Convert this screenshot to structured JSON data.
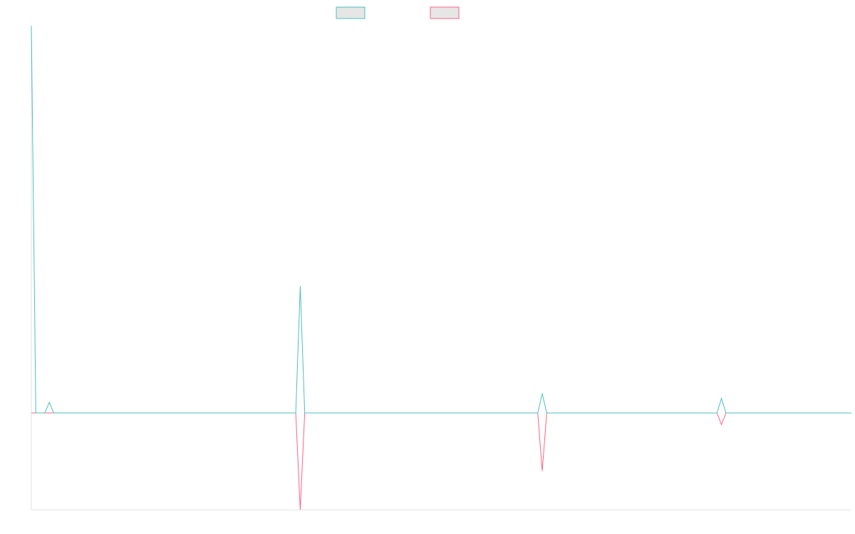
{
  "chart_data": {
    "type": "line",
    "title": "",
    "xlabel": "",
    "ylabel": "",
    "x_count": 184,
    "ylim": [
      -100,
      400
    ],
    "grid": false,
    "legend": {
      "placement": "top-center",
      "show_labels": false
    },
    "series": [
      {
        "color": "#4bc0c0",
        "fill": "#e6e6e6",
        "points": [
          {
            "x": 0,
            "y": 400
          },
          {
            "x": 1,
            "y": 0
          },
          {
            "x": 3,
            "y": 0
          },
          {
            "x": 4,
            "y": 11
          },
          {
            "x": 5,
            "y": 0
          },
          {
            "x": 59,
            "y": 0
          },
          {
            "x": 60,
            "y": 131
          },
          {
            "x": 61,
            "y": 0
          },
          {
            "x": 113,
            "y": 0
          },
          {
            "x": 114,
            "y": 20
          },
          {
            "x": 115,
            "y": 0
          },
          {
            "x": 153,
            "y": 0
          },
          {
            "x": 154,
            "y": 15
          },
          {
            "x": 155,
            "y": 0
          },
          {
            "x": 183,
            "y": 0
          }
        ]
      },
      {
        "color": "#ff6384",
        "fill": "#e6e6e6",
        "points": [
          {
            "x": 0,
            "y": 0
          },
          {
            "x": 59,
            "y": 0
          },
          {
            "x": 60,
            "y": -100
          },
          {
            "x": 61,
            "y": 0
          },
          {
            "x": 113,
            "y": 0
          },
          {
            "x": 114,
            "y": -60
          },
          {
            "x": 115,
            "y": 0
          },
          {
            "x": 153,
            "y": 0
          },
          {
            "x": 154,
            "y": -12
          },
          {
            "x": 155,
            "y": 0
          },
          {
            "x": 183,
            "y": 0
          }
        ]
      }
    ]
  }
}
